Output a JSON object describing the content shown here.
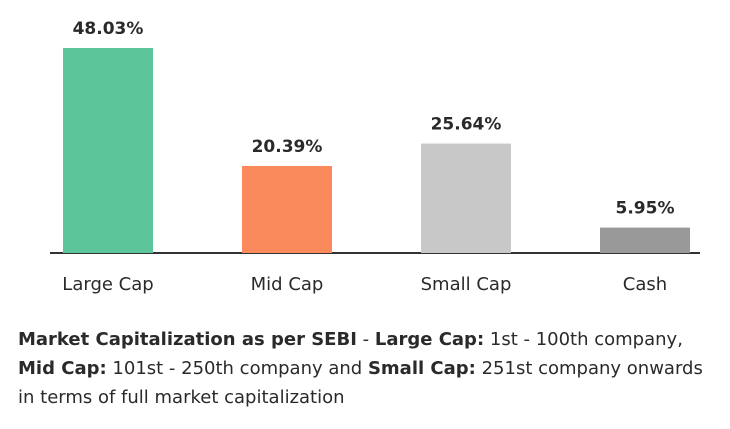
{
  "chart_data": {
    "type": "bar",
    "categories": [
      "Large Cap",
      "Mid Cap",
      "Small Cap",
      "Cash"
    ],
    "values": [
      48.03,
      20.39,
      25.64,
      5.95
    ],
    "value_labels": [
      "48.03%",
      "20.39%",
      "25.64%",
      "5.95%"
    ],
    "colors": [
      "#5cc59a",
      "#fa8a5c",
      "#c8c8c8",
      "#999999"
    ],
    "ylim": [
      0,
      48.03
    ],
    "grid": false,
    "legend": "none"
  },
  "footnote": {
    "part1_bold": "Market Capitalization as per SEBI",
    "part2": " - ",
    "part3_bold": "Large Cap:",
    "part4": " 1st - 100th company, ",
    "part5_bold": "Mid Cap:",
    "part6": " 101st - 250th company and ",
    "part7_bold": "Small Cap:",
    "part8": " 251st company onwards in terms of full market capitalization"
  }
}
